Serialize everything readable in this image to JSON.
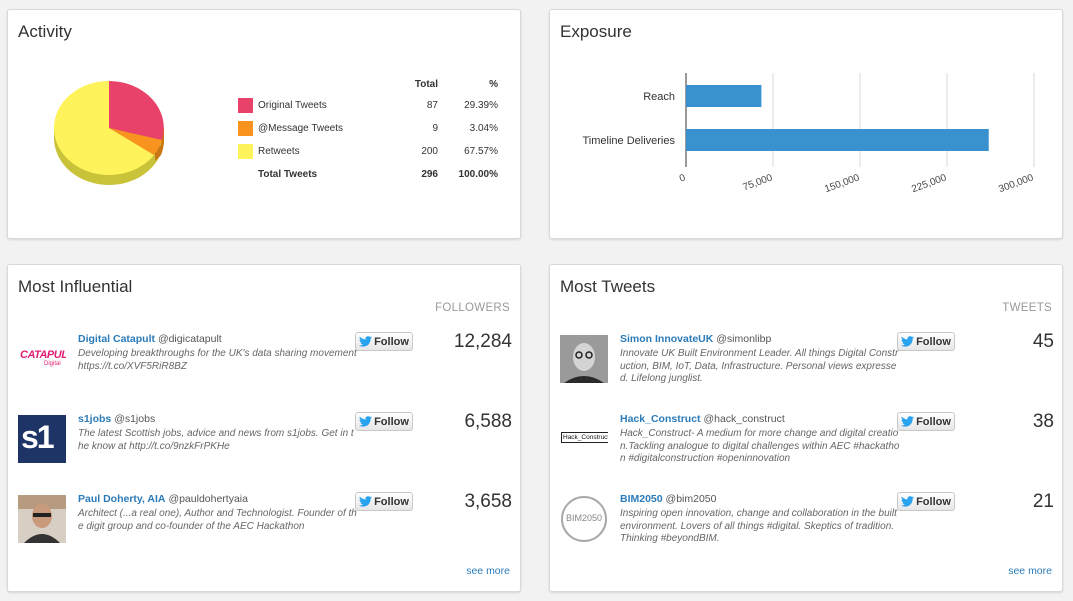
{
  "activity": {
    "title": "Activity",
    "table_headers": {
      "total": "Total",
      "percent": "%"
    },
    "rows": [
      {
        "label": "Original Tweets",
        "total": "87",
        "percent": "29.39%",
        "color": "#e8416a"
      },
      {
        "label": "@Message Tweets",
        "total": "9",
        "percent": "3.04%",
        "color": "#f7931e"
      },
      {
        "label": "Retweets",
        "total": "200",
        "percent": "67.57%",
        "color": "#fff35c"
      }
    ],
    "total_row": {
      "label": "Total Tweets",
      "total": "296",
      "percent": "100.00%"
    }
  },
  "exposure": {
    "title": "Exposure",
    "chart_data": {
      "type": "bar",
      "orientation": "horizontal",
      "categories": [
        "Reach",
        "Timeline Deliveries"
      ],
      "values": [
        65000,
        261000
      ],
      "xlim": [
        0,
        300000
      ],
      "ticks": [
        "0",
        "75,000",
        "150,000",
        "225,000",
        "300,000"
      ],
      "tick_values": [
        0,
        75000,
        150000,
        225000,
        300000
      ],
      "color": "#3a91cf",
      "grid": true
    }
  },
  "influential": {
    "title": "Most Influential",
    "column_header": "FOLLOWERS",
    "follow_label": "Follow",
    "see_more": "see more",
    "people": [
      {
        "name": "Digital Catapult",
        "handle": "@digicatapult",
        "desc": "Developing breakthroughs for the UK's data sharing movement https://t.co/XVF5RiR8BZ",
        "count": "12,284",
        "avatar": "catapult-logo"
      },
      {
        "name": "s1jobs",
        "handle": "@s1jobs",
        "desc": "The latest Scottish jobs, advice and news from s1jobs. Get in the know at http://t.co/9nzkFrPKHe",
        "count": "6,588",
        "avatar": "s1-logo"
      },
      {
        "name": "Paul Doherty, AIA",
        "handle": "@pauldohertyaia",
        "desc": "Architect (...a real one), Author and Technologist. Founder of the digit group and co-founder of the AEC Hackathon",
        "count": "3,658",
        "avatar": "person-photo"
      }
    ]
  },
  "tweets": {
    "title": "Most Tweets",
    "column_header": "TWEETS",
    "follow_label": "Follow",
    "see_more": "see more",
    "people": [
      {
        "name": "Simon InnovateUK",
        "handle": "@simonlibp",
        "desc": "Innovate UK Built Environment Leader. All things Digital Construction, BIM, IoT, Data, Infrastructure. Personal views expressed. Lifelong junglist.",
        "count": "45",
        "avatar": "person-photo"
      },
      {
        "name": "Hack_Construct",
        "handle": "@hack_construct",
        "desc": "Hack_Construct- A medium for more change and digital creation.Tackling analogue to digital challenges within AEC #hackathon #digitalconstruction #openinnovation",
        "count": "38",
        "avatar": "hack-construct-logo"
      },
      {
        "name": "BIM2050",
        "handle": "@bim2050",
        "desc": "Inspiring open innovation, change and collaboration in the built environment. Lovers of all things #digital. Skeptics of tradition. Thinking #beyondBIM.",
        "count": "21",
        "avatar": "bim2050-logo"
      }
    ]
  },
  "logos": {
    "catapult": "CATAPULT",
    "catapult_sub": "Digital",
    "s1": "s1",
    "hack": "Hack_Construct",
    "bim": "BIM2050"
  }
}
